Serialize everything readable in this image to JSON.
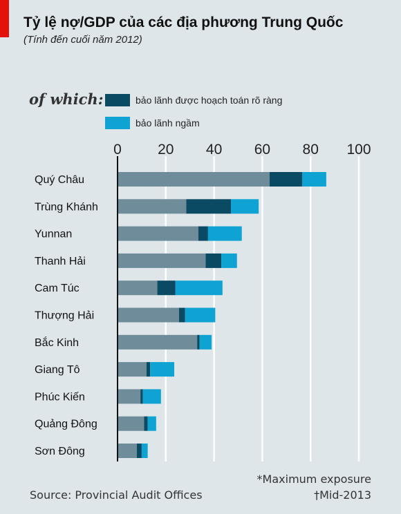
{
  "header": {
    "title": "Tỷ lệ nợ/GDP của các địa phương Trung Quốc",
    "subtitle": "(Tính đến cuối năm 2012)"
  },
  "legend": {
    "prefix": "of which:",
    "items": [
      {
        "label": "bảo lãnh được hoạch toán rõ ràng",
        "color": "#0b4a63"
      },
      {
        "label": "bảo lãnh ngầm",
        "color": "#0ea3d3"
      }
    ]
  },
  "footer": {
    "source": "Source: Provincial Audit Offices",
    "note1": "*Maximum exposure",
    "note2": "†Mid-2013"
  },
  "chart_data": {
    "type": "bar",
    "orientation": "horizontal",
    "stacked": true,
    "categories": [
      "Quý Châu",
      "Trùng Khánh",
      "Yunnan",
      "Thanh Hải",
      "Cam Túc",
      "Thượng Hải",
      "Bắc Kinh",
      "Giang Tô",
      "Phúc Kiến",
      "Quảng Đông",
      "Sơn Đông"
    ],
    "series": [
      {
        "color": "#6e8c9a",
        "values": [
          63,
          28.5,
          33.5,
          36.5,
          16.5,
          25.5,
          33,
          12,
          9.5,
          11,
          8
        ]
      },
      {
        "name": "bảo lãnh được hoạch toán rõ ràng",
        "color": "#0b4a63",
        "values": [
          13.5,
          18.5,
          4,
          6.5,
          7.5,
          2.5,
          1,
          1.5,
          1,
          1.5,
          2
        ]
      },
      {
        "name": "bảo lãnh ngầm",
        "color": "#0ea3d3",
        "values": [
          10,
          11.5,
          14,
          6.5,
          19.5,
          12.5,
          5,
          10,
          7.5,
          3.5,
          2.5
        ]
      }
    ],
    "xlim": [
      0,
      100
    ],
    "xticks": [
      "0",
      "20",
      "40",
      "60",
      "80",
      "100"
    ],
    "grid": true
  }
}
